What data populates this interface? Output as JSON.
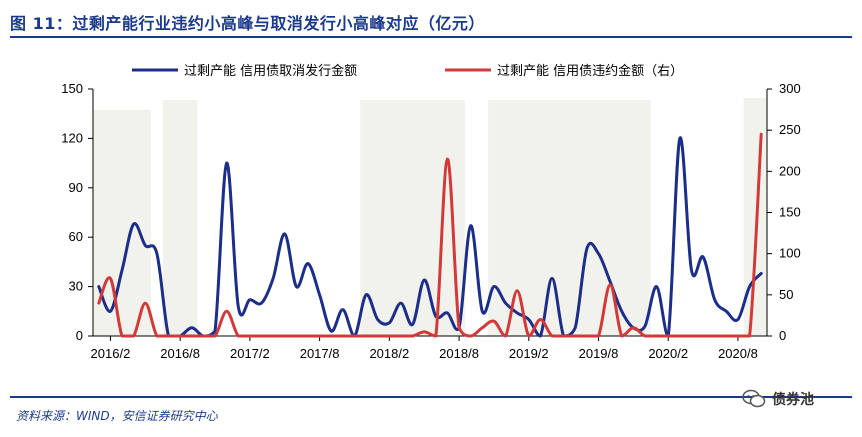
{
  "title": "图 11：过剩产能行业违约小高峰与取消发行小高峰对应（亿元）",
  "source": "资料来源：WIND，安信证券研究中心",
  "watermark": "债券池",
  "colors": {
    "navy": "#1b2e8a",
    "red": "#d23a3a",
    "band": "#f2f2ec",
    "accent": "#1b3a8c"
  },
  "chart_data": {
    "type": "line",
    "x": [
      "2016/1",
      "2016/2",
      "2016/3",
      "2016/4",
      "2016/5",
      "2016/6",
      "2016/7",
      "2016/8",
      "2016/9",
      "2016/10",
      "2016/11",
      "2016/12",
      "2017/1",
      "2017/2",
      "2017/3",
      "2017/4",
      "2017/5",
      "2017/6",
      "2017/7",
      "2017/8",
      "2017/9",
      "2017/10",
      "2017/11",
      "2017/12",
      "2018/1",
      "2018/2",
      "2018/3",
      "2018/4",
      "2018/5",
      "2018/6",
      "2018/7",
      "2018/8",
      "2018/9",
      "2018/10",
      "2018/11",
      "2018/12",
      "2019/1",
      "2019/2",
      "2019/3",
      "2019/4",
      "2019/5",
      "2019/6",
      "2019/7",
      "2019/8",
      "2019/9",
      "2019/10",
      "2019/11",
      "2019/12",
      "2020/1",
      "2020/2",
      "2020/3",
      "2020/4",
      "2020/5",
      "2020/6",
      "2020/7",
      "2020/8",
      "2020/9",
      "2020/10"
    ],
    "tick_labels": [
      "2016/2",
      "2016/8",
      "2017/2",
      "2017/8",
      "2018/2",
      "2018/8",
      "2019/2",
      "2019/8",
      "2020/2",
      "2020/8"
    ],
    "tick_indices": [
      1,
      7,
      13,
      19,
      25,
      31,
      37,
      43,
      49,
      55
    ],
    "left_axis": {
      "ylim": [
        0,
        150
      ],
      "ticks": [
        0,
        30,
        60,
        90,
        120,
        150
      ]
    },
    "right_axis": {
      "ylim": [
        0,
        300
      ],
      "ticks": [
        0,
        50,
        100,
        150,
        200,
        250,
        300
      ]
    },
    "series": [
      {
        "name": "过剩产能 信用债取消发行金额",
        "axis": "left",
        "color": "#1b2e8a",
        "values": [
          30,
          15,
          40,
          68,
          55,
          50,
          0,
          0,
          5,
          0,
          3,
          105,
          18,
          22,
          20,
          35,
          62,
          30,
          44,
          25,
          3,
          16,
          0,
          25,
          10,
          8,
          20,
          7,
          34,
          12,
          14,
          5,
          67,
          15,
          30,
          20,
          14,
          10,
          0,
          35,
          0,
          5,
          53,
          50,
          33,
          15,
          5,
          6,
          30,
          0,
          120,
          40,
          48,
          22,
          15,
          10,
          30,
          38
        ]
      },
      {
        "name": "过剩产能 信用债违约金额（右）",
        "axis": "right",
        "color": "#d23a3a",
        "values": [
          40,
          70,
          0,
          0,
          40,
          0,
          0,
          0,
          0,
          0,
          0,
          30,
          0,
          0,
          0,
          0,
          0,
          0,
          0,
          0,
          0,
          0,
          0,
          0,
          0,
          0,
          0,
          0,
          5,
          0,
          215,
          10,
          0,
          10,
          18,
          0,
          55,
          0,
          20,
          0,
          0,
          0,
          0,
          0,
          62,
          0,
          10,
          0,
          0,
          0,
          0,
          0,
          0,
          0,
          0,
          0,
          0,
          245
        ]
      }
    ],
    "shaded_ranges": [
      [
        0,
        4
      ],
      [
        6,
        8
      ],
      [
        23,
        31
      ],
      [
        34,
        45
      ],
      [
        46,
        47
      ],
      [
        56,
        57
      ]
    ],
    "legend_position": "top"
  }
}
